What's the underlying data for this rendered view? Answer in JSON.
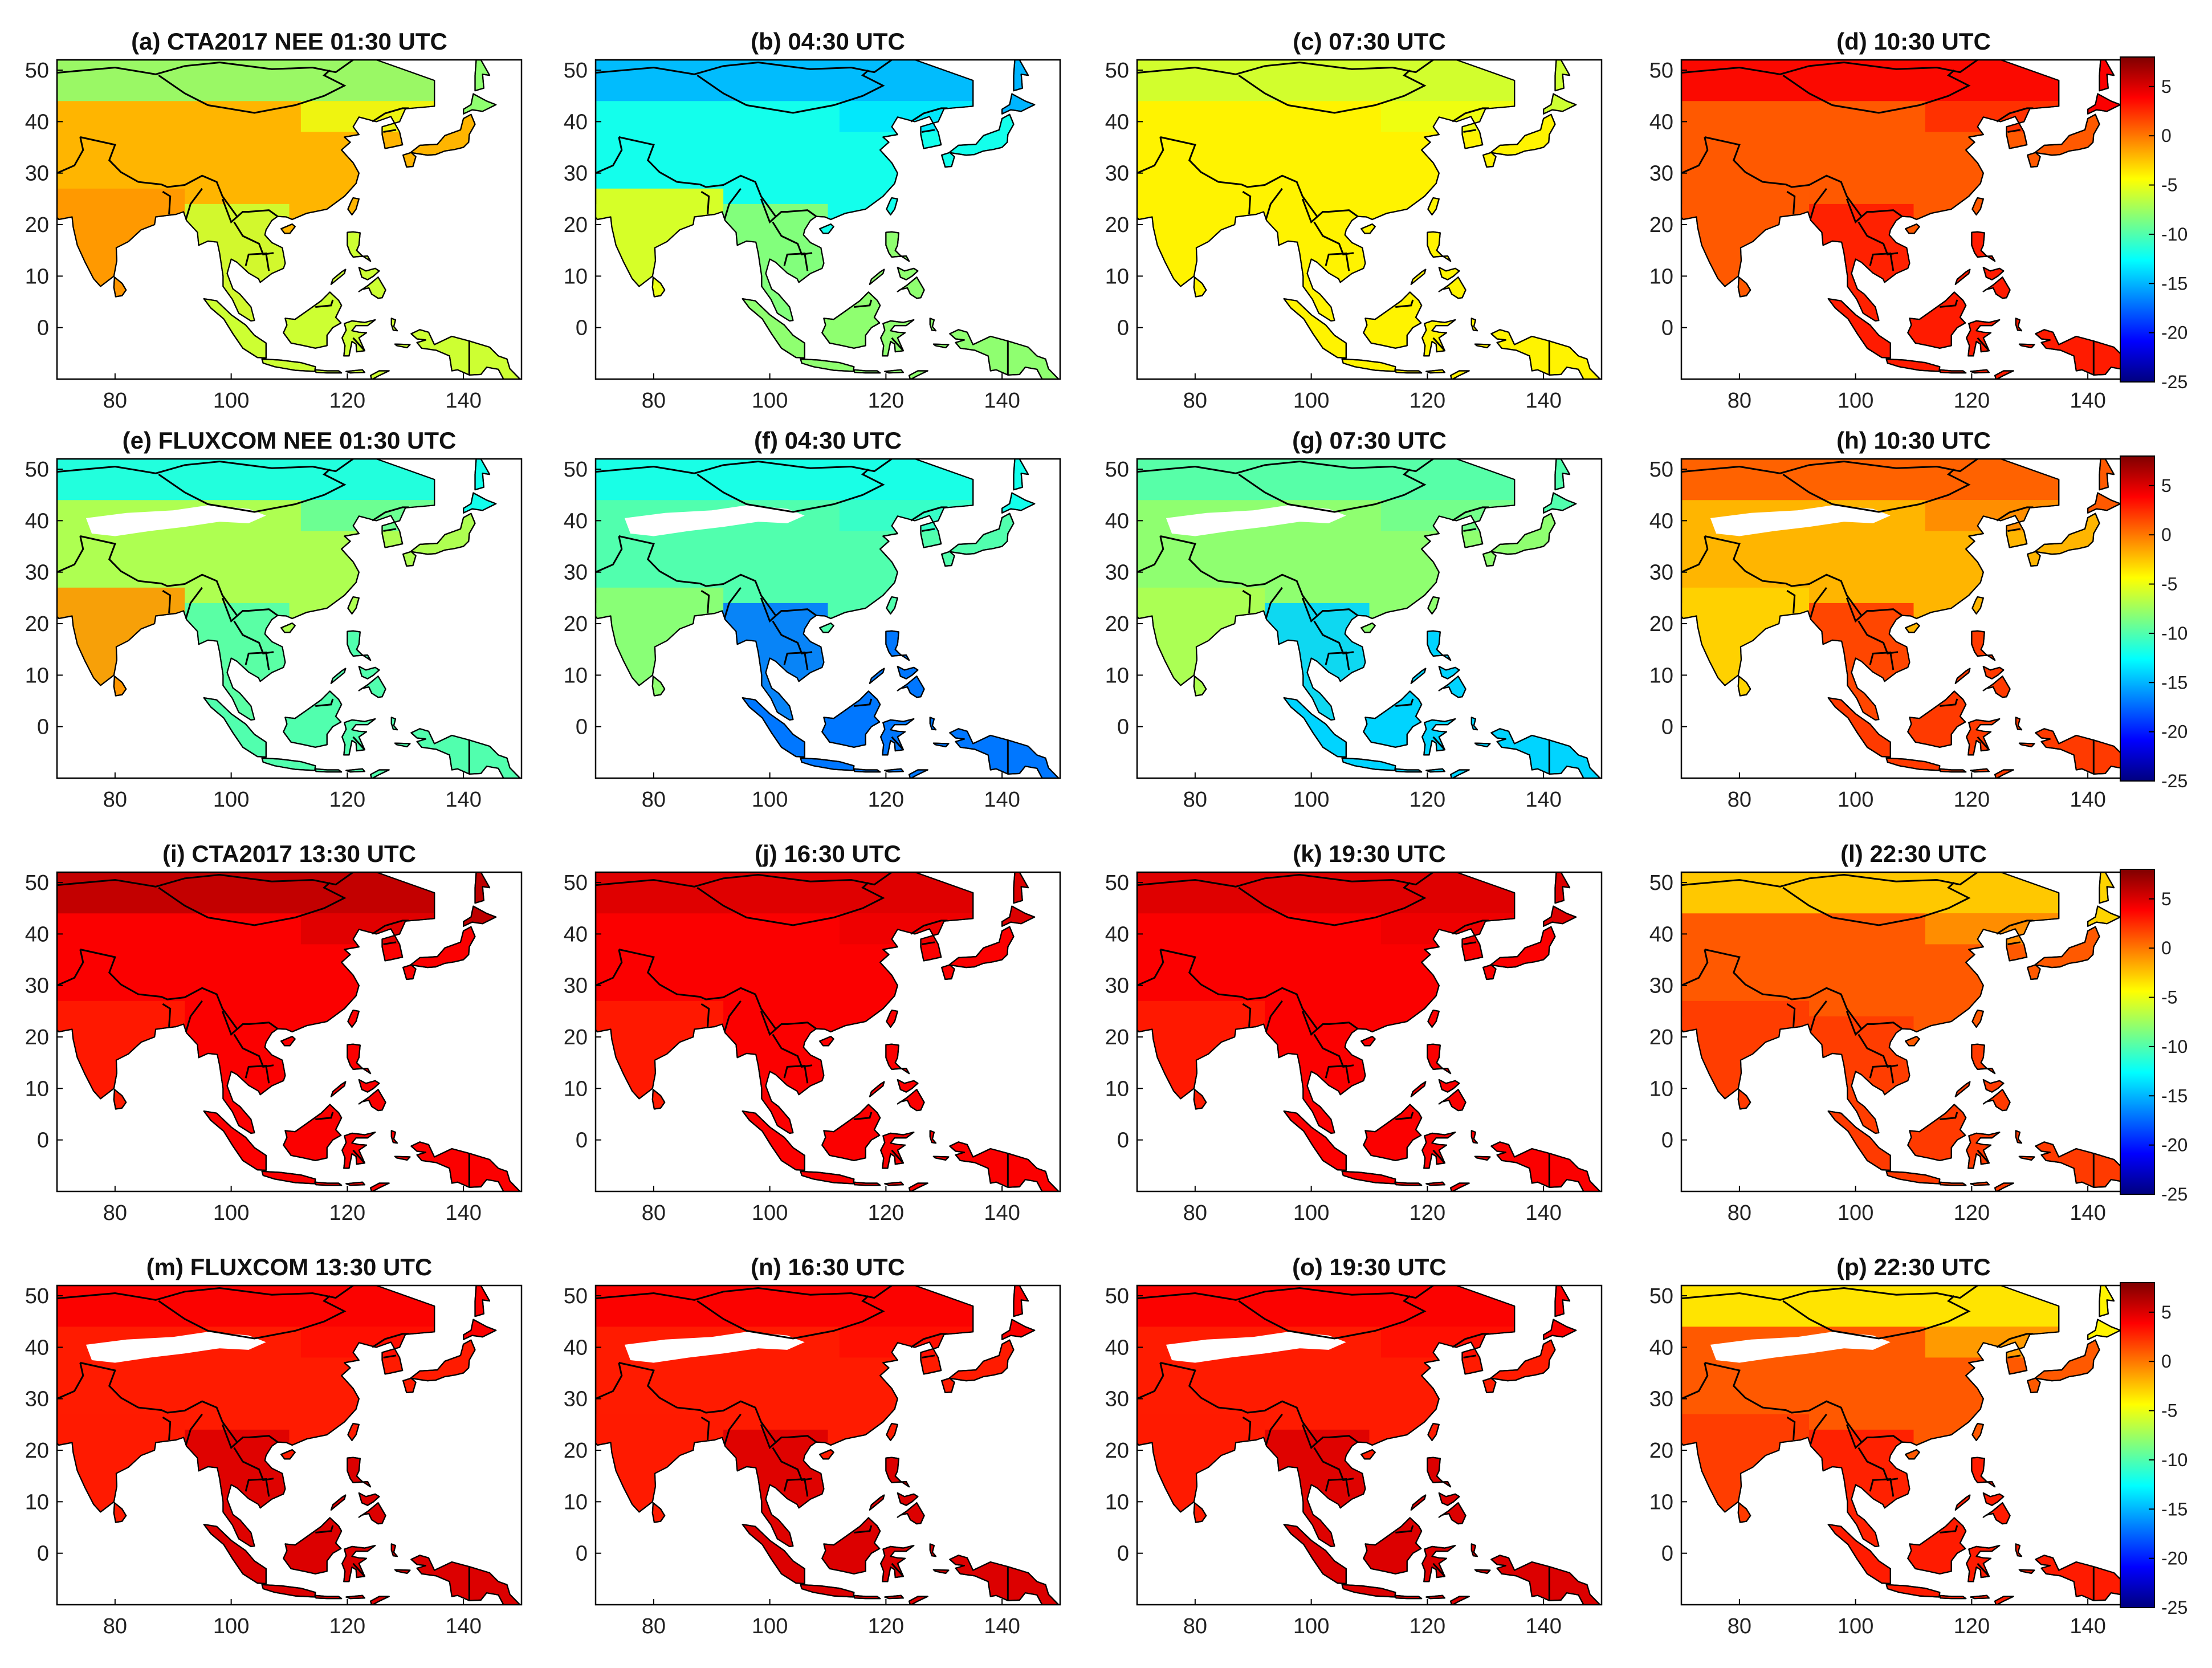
{
  "chart_data": {
    "type": "heatmap",
    "description_units": "NEE",
    "x_axis": {
      "label": "",
      "range": [
        70,
        150
      ],
      "ticks": [
        80,
        100,
        120,
        140
      ]
    },
    "y_axis": {
      "label": "",
      "range": [
        -10,
        52
      ],
      "ticks": [
        0,
        10,
        20,
        30,
        40,
        50
      ]
    },
    "colormap": "jet",
    "colorbar": {
      "range": [
        -25,
        8
      ],
      "tick_labels": [
        "5",
        "0",
        "-5",
        "-10",
        "-15",
        "-20",
        "-25"
      ],
      "tick_values": [
        5,
        0,
        -5,
        -10,
        -15,
        -20,
        -25
      ]
    },
    "colorbar_stops": [
      "#00007f",
      "#0000ff",
      "#007fff",
      "#00ffff",
      "#7fff7f",
      "#ffff00",
      "#ff7f00",
      "#ff0000",
      "#7f0000"
    ],
    "panels": [
      {
        "title": "(a) CTA2017 NEE 01:30 UTC",
        "dataset": "CTA2017",
        "time": "01:30",
        "north": -8,
        "central": -2,
        "south": -1,
        "southeast": -6,
        "desert": null
      },
      {
        "title": "(b) 04:30 UTC",
        "dataset": "CTA2017",
        "time": "04:30",
        "north": -15,
        "central": -12,
        "south": -5,
        "southeast": -8,
        "desert": null
      },
      {
        "title": "(c) 07:30 UTC",
        "dataset": "CTA2017",
        "time": "07:30",
        "north": -6,
        "central": -4,
        "south": -4,
        "southeast": -4,
        "desert": null
      },
      {
        "title": "(d) 10:30 UTC",
        "dataset": "CTA2017",
        "time": "10:30",
        "north": 4,
        "central": 1,
        "south": 1,
        "southeast": 3,
        "desert": null
      },
      {
        "title": "(e) FLUXCOM NEE 01:30 UTC",
        "dataset": "FLUXCOM",
        "time": "01:30",
        "north": -12,
        "central": -7,
        "south": -1,
        "southeast": -10,
        "desert": "none"
      },
      {
        "title": "(f) 04:30 UTC",
        "dataset": "FLUXCOM",
        "time": "04:30",
        "north": -12,
        "central": -10,
        "south": -8,
        "southeast": -17,
        "desert": "none"
      },
      {
        "title": "(g) 07:30 UTC",
        "dataset": "FLUXCOM",
        "time": "07:30",
        "north": -10,
        "central": -8,
        "south": -7,
        "southeast": -14,
        "desert": "none"
      },
      {
        "title": "(h) 10:30 UTC",
        "dataset": "FLUXCOM",
        "time": "10:30",
        "north": 1,
        "central": -2,
        "south": -3,
        "southeast": 2,
        "desert": "none"
      },
      {
        "title": "(i) CTA2017 13:30 UTC",
        "dataset": "CTA2017",
        "time": "13:30",
        "north": 6,
        "central": 4,
        "south": 3,
        "southeast": 4,
        "desert": null
      },
      {
        "title": "(j) 16:30 UTC",
        "dataset": "CTA2017",
        "time": "16:30",
        "north": 5,
        "central": 4,
        "south": 3,
        "southeast": 4,
        "desert": null
      },
      {
        "title": "(k) 19:30 UTC",
        "dataset": "CTA2017",
        "time": "19:30",
        "north": 5,
        "central": 4,
        "south": 3,
        "southeast": 4,
        "desert": null
      },
      {
        "title": "(l) 22:30 UTC",
        "dataset": "CTA2017",
        "time": "22:30",
        "north": -3,
        "central": 1,
        "south": 2,
        "southeast": 2,
        "desert": null
      },
      {
        "title": "(m) FLUXCOM 13:30 UTC",
        "dataset": "FLUXCOM",
        "time": "13:30",
        "north": 4,
        "central": 3,
        "south": 3,
        "southeast": 5,
        "desert": "none"
      },
      {
        "title": "(n) 16:30 UTC",
        "dataset": "FLUXCOM",
        "time": "16:30",
        "north": 4,
        "central": 3,
        "south": 3,
        "southeast": 5,
        "desert": "none"
      },
      {
        "title": "(o) 19:30 UTC",
        "dataset": "FLUXCOM",
        "time": "19:30",
        "north": 4,
        "central": 3,
        "south": 3,
        "southeast": 5,
        "desert": "none"
      },
      {
        "title": "(p) 22:30 UTC",
        "dataset": "FLUXCOM",
        "time": "22:30",
        "north": -4,
        "central": 1,
        "south": 2,
        "southeast": 3,
        "desert": "none"
      }
    ]
  }
}
